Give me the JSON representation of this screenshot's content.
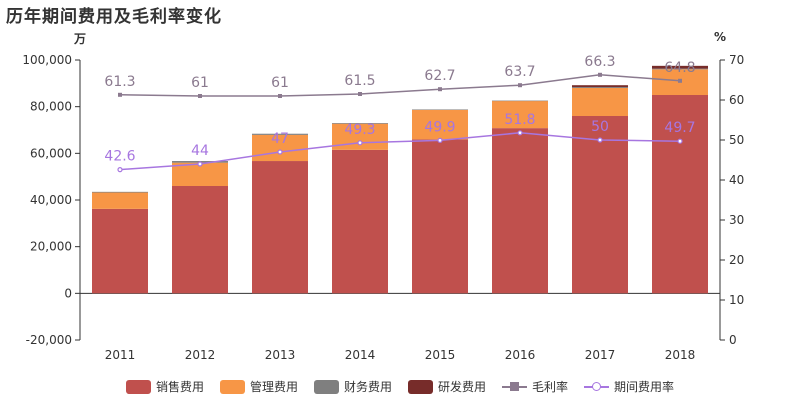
{
  "title": "历年期间费用及毛利率变化",
  "left_unit": "万",
  "right_unit": "%",
  "chart_data": {
    "type": "bar",
    "stacked": true,
    "categories": [
      "2011",
      "2012",
      "2013",
      "2014",
      "2015",
      "2016",
      "2017",
      "2018"
    ],
    "left_axis": {
      "min": -20000,
      "max": 100000,
      "step": 20000,
      "ticks": [
        "-20,000",
        "0",
        "20,000",
        "40,000",
        "60,000",
        "80,000",
        "100,000"
      ]
    },
    "right_axis": {
      "min": 0,
      "max": 70,
      "step": 10,
      "ticks": [
        "0",
        "10",
        "20",
        "30",
        "40",
        "50",
        "60",
        "70"
      ]
    },
    "series": [
      {
        "name": "销售费用",
        "kind": "bar",
        "color": "#c0504d",
        "values": [
          36200,
          46000,
          56700,
          61500,
          66000,
          70800,
          76000,
          85000
        ]
      },
      {
        "name": "管理费用",
        "kind": "bar",
        "color": "#f79646",
        "values": [
          7000,
          10000,
          11200,
          11200,
          12700,
          11700,
          12000,
          11000
        ]
      },
      {
        "name": "财务费用",
        "kind": "bar",
        "color": "#7f7f7f",
        "values": [
          300,
          700,
          500,
          300,
          100,
          100,
          400,
          300
        ]
      },
      {
        "name": "研发费用",
        "kind": "bar",
        "color": "#772c2a",
        "values": [
          0,
          0,
          0,
          0,
          0,
          0,
          800,
          1200
        ]
      },
      {
        "name": "毛利率",
        "kind": "line",
        "axis": "right",
        "color": "#8b7a8f",
        "marker": "square",
        "values": [
          61.3,
          61,
          61,
          61.5,
          62.7,
          63.7,
          66.3,
          64.8
        ],
        "labels": [
          "61.3",
          "61",
          "61",
          "61.5",
          "62.7",
          "63.7",
          "66.3",
          "64.8"
        ]
      },
      {
        "name": "期间费用率",
        "kind": "line",
        "axis": "right",
        "color": "#a776e0",
        "marker": "circle",
        "values": [
          42.6,
          44,
          47,
          49.3,
          49.9,
          51.8,
          50,
          49.7
        ],
        "labels": [
          "42.6",
          "44",
          "47",
          "49.3",
          "49.9",
          "51.8",
          "50",
          "49.7"
        ]
      }
    ],
    "legend_position": "bottom",
    "grid": false
  }
}
